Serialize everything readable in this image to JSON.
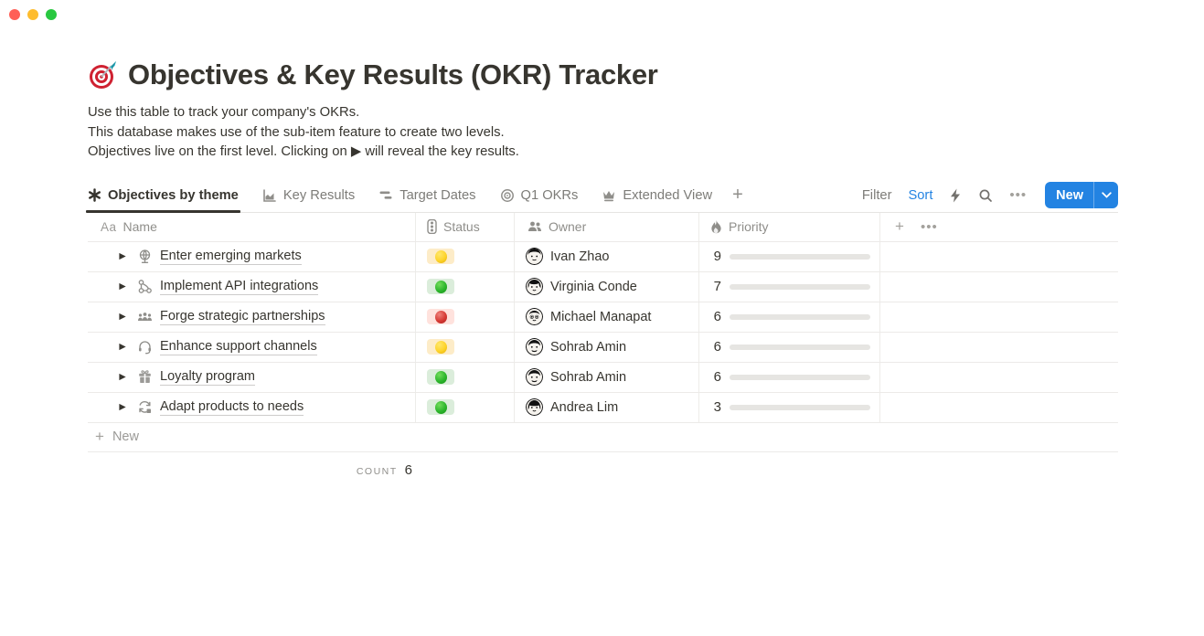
{
  "window": {
    "traffic_lights": [
      "close",
      "minimize",
      "zoom"
    ]
  },
  "header": {
    "icon": "dartboard-emoji",
    "title": "Objectives & Key Results (OKR) Tracker",
    "description_lines": [
      "Use this table to track your company's OKRs.",
      "This database makes use of the sub-item feature to create two levels.",
      "Objectives live on the first level. Clicking on ▶ will reveal the key results."
    ]
  },
  "toolbar": {
    "tabs": [
      {
        "label": "Objectives by theme",
        "icon": "asterisk-view-icon",
        "active": true
      },
      {
        "label": "Key Results",
        "icon": "chart-view-icon",
        "active": false
      },
      {
        "label": "Target Dates",
        "icon": "timeline-view-icon",
        "active": false
      },
      {
        "label": "Q1 OKRs",
        "icon": "target-view-icon",
        "active": false
      },
      {
        "label": "Extended View",
        "icon": "crown-view-icon",
        "active": false
      }
    ],
    "add_view_label": "+",
    "filter_label": "Filter",
    "sort_label": "Sort",
    "more_icons": [
      "lightning-icon",
      "search-icon",
      "more-dots-icon"
    ],
    "new_button_label": "New",
    "accent_color": "#2383e2"
  },
  "table": {
    "columns": [
      {
        "label": "Name",
        "icon": "text-type-icon"
      },
      {
        "label": "Status",
        "icon": "traffic-light-icon"
      },
      {
        "label": "Owner",
        "icon": "people-icon"
      },
      {
        "label": "Priority",
        "icon": "flame-icon"
      }
    ],
    "header_extra_icons": [
      "plus-icon",
      "more-dots-icon"
    ],
    "priority_max": 10,
    "progress_color": "#568266",
    "status_colors": {
      "yellow": "#fdecc8",
      "green": "#dbeddb",
      "red": "#ffe2dd"
    },
    "rows": [
      {
        "name": "Enter emerging markets",
        "icon": "globe-icon",
        "status": "yellow",
        "owner": "Ivan Zhao",
        "priority": 9
      },
      {
        "name": "Implement API integrations",
        "icon": "api-nodes-icon",
        "status": "green",
        "owner": "Virginia Conde",
        "priority": 7
      },
      {
        "name": "Forge strategic partnerships",
        "icon": "people-group-icon",
        "status": "red",
        "owner": "Michael Manapat",
        "priority": 6
      },
      {
        "name": "Enhance support channels",
        "icon": "headset-icon",
        "status": "yellow",
        "owner": "Sohrab Amin",
        "priority": 6
      },
      {
        "name": "Loyalty program",
        "icon": "gift-icon",
        "status": "green",
        "owner": "Sohrab Amin",
        "priority": 6
      },
      {
        "name": "Adapt products to needs",
        "icon": "sync-icon",
        "status": "green",
        "owner": "Andrea Lim",
        "priority": 3
      }
    ],
    "new_row_label": "New",
    "count_label": "COUNT",
    "count_value": "6"
  }
}
